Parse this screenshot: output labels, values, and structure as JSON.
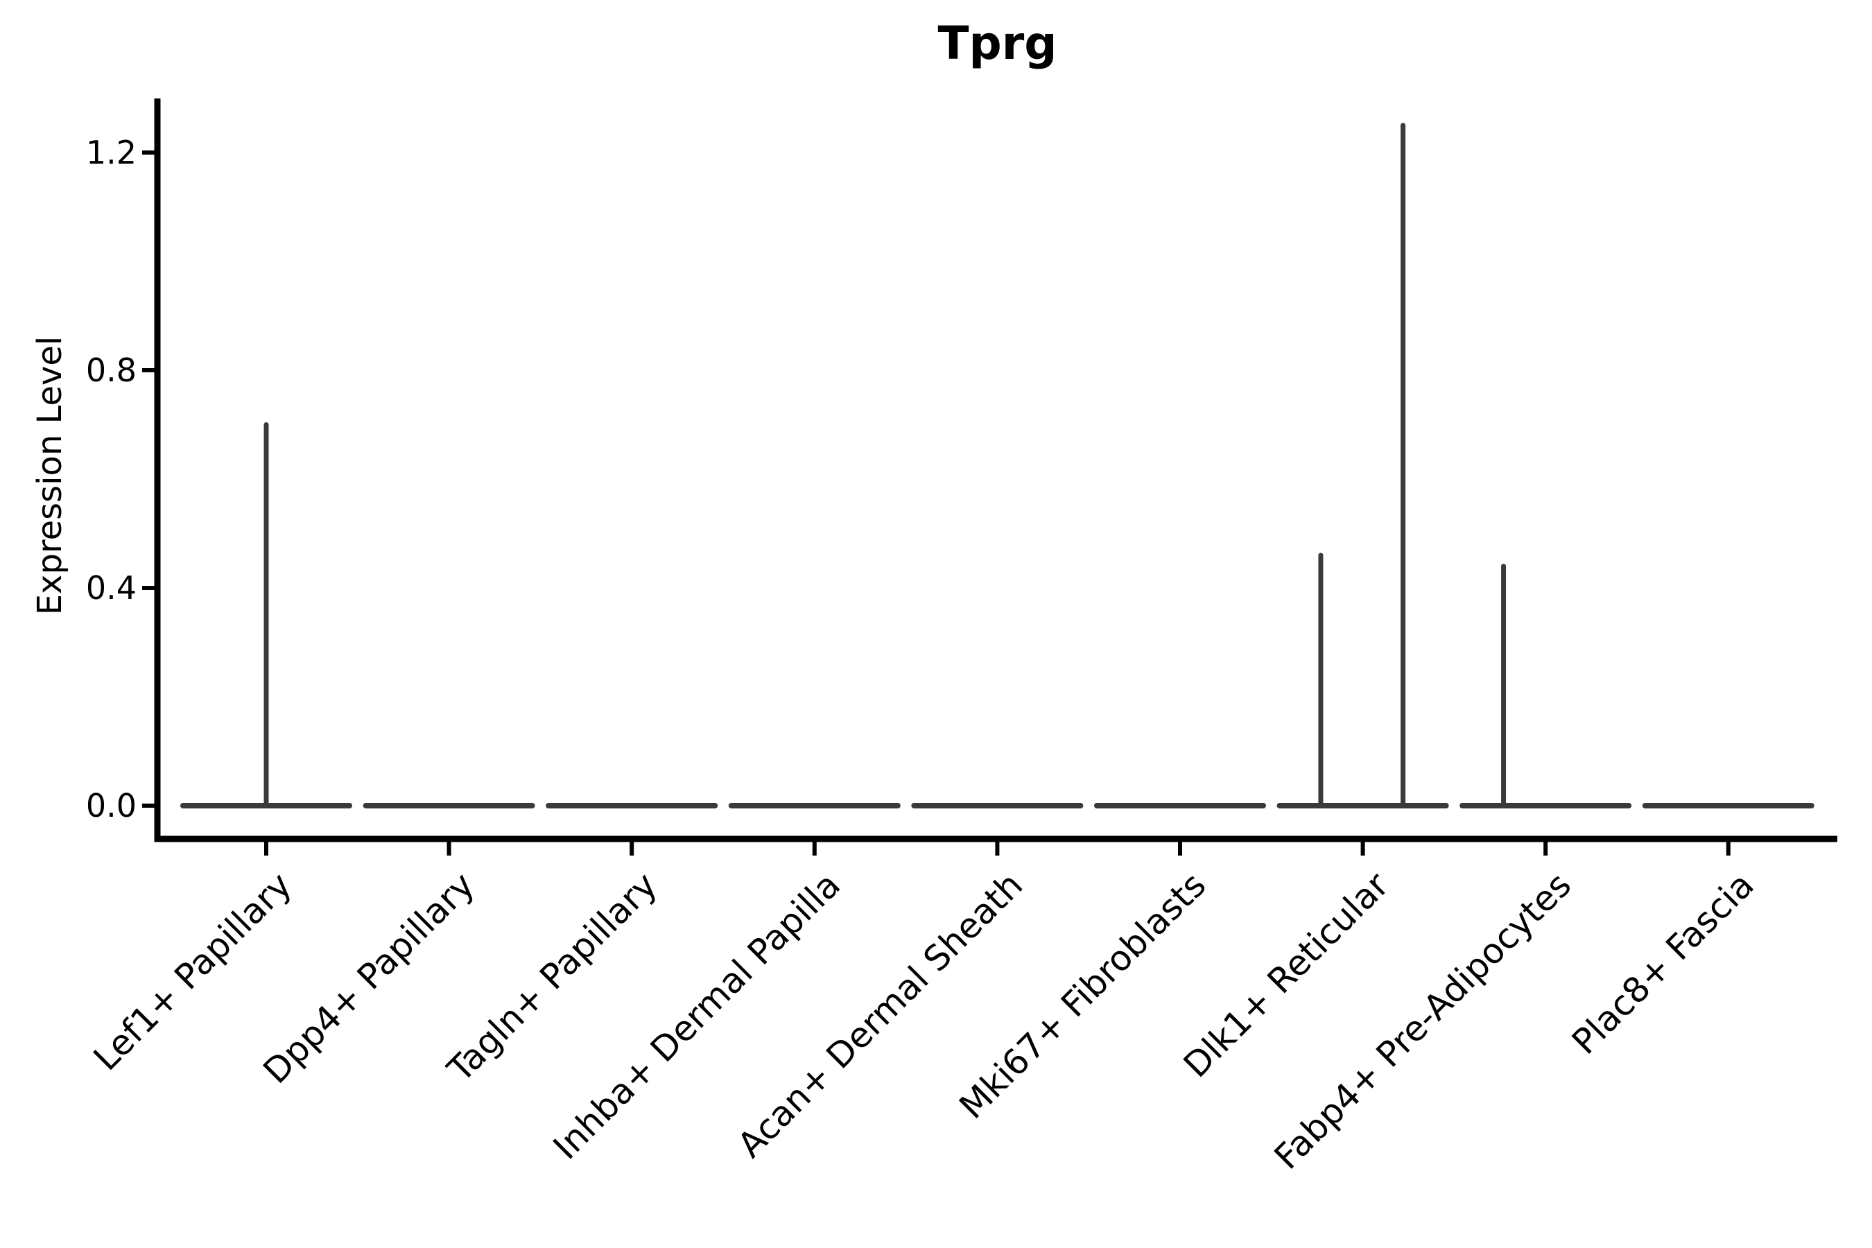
{
  "figure": {
    "background": "#ffffff"
  },
  "chart_data": {
    "type": "violin",
    "title": "Tprg",
    "ylabel": "Expression Level",
    "xlabel": "",
    "grid": false,
    "legend": "none",
    "ylim": [
      -0.06,
      1.3
    ],
    "yticks": [
      "0.0",
      "0.4",
      "0.8",
      "1.2"
    ],
    "categories": [
      "Lef1+ Papillary",
      "Dpp4+ Papillary",
      "Tagln+ Papillary",
      "Inhba+ Dermal Papilla",
      "Acan+ Dermal Sheath",
      "Mki67+ Fibroblasts",
      "Dlk1+ Reticular",
      "Fabp4+ Pre-Adipocytes",
      "Plac8+ Fascia"
    ],
    "violins": [
      {
        "category": "Lef1+ Papillary",
        "body": "flat-at-zero",
        "max_expression": 0.7,
        "spikes": [
          {
            "offset_frac": 0.0,
            "value": 0.7
          }
        ]
      },
      {
        "category": "Dpp4+ Papillary",
        "body": "flat-at-zero",
        "max_expression": 0.0,
        "spikes": []
      },
      {
        "category": "Tagln+ Papillary",
        "body": "flat-at-zero",
        "max_expression": 0.0,
        "spikes": []
      },
      {
        "category": "Inhba+ Dermal Papilla",
        "body": "flat-at-zero",
        "max_expression": 0.0,
        "spikes": []
      },
      {
        "category": "Acan+ Dermal Sheath",
        "body": "flat-at-zero",
        "max_expression": 0.0,
        "spikes": []
      },
      {
        "category": "Mki67+ Fibroblasts",
        "body": "flat-at-zero",
        "max_expression": 0.0,
        "spikes": []
      },
      {
        "category": "Dlk1+ Reticular",
        "body": "flat-at-zero",
        "max_expression": 1.25,
        "spikes": [
          {
            "offset_frac": -0.23,
            "value": 0.46
          },
          {
            "offset_frac": 0.22,
            "value": 1.25
          }
        ]
      },
      {
        "category": "Fabp4+ Pre-Adipocytes",
        "body": "flat-at-zero",
        "max_expression": 0.44,
        "spikes": [
          {
            "offset_frac": -0.23,
            "value": 0.44
          }
        ]
      },
      {
        "category": "Plac8+ Fascia",
        "body": "flat-at-zero",
        "max_expression": 0.0,
        "spikes": []
      }
    ],
    "colors": {
      "violin_line": "#3a3a3a",
      "axis": "#000000",
      "text": "#000000"
    }
  }
}
